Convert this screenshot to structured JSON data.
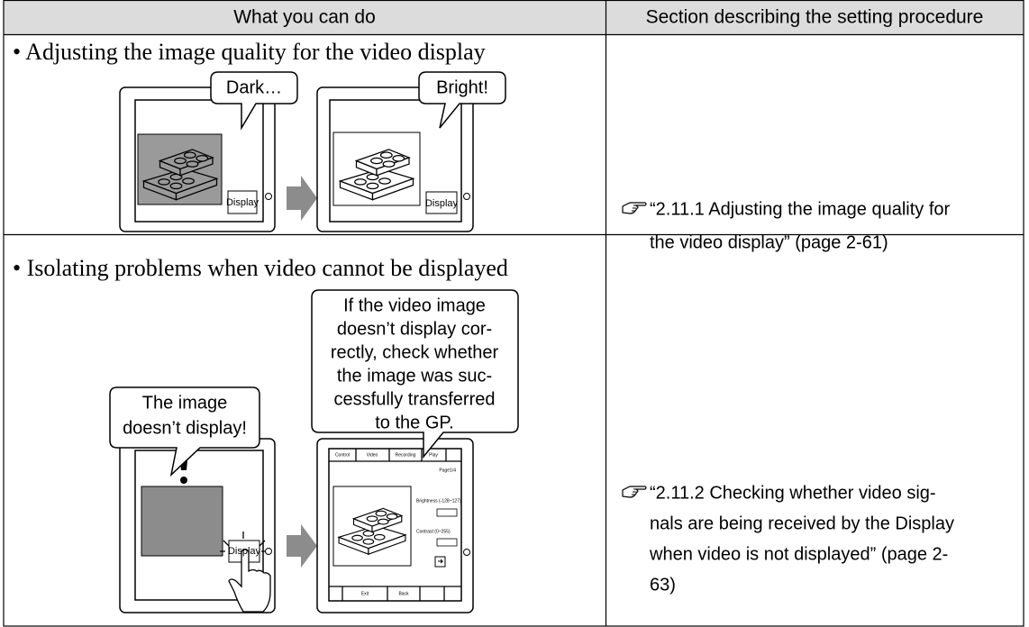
{
  "table": {
    "header": [
      "What you can do",
      "Section describing the setting procedure"
    ],
    "rows": [
      {
        "task": "• Adjusting the image quality for the video display",
        "illustration": {
          "before_callout": "Dark…",
          "after_callout": "Bright!",
          "button": "Display"
        },
        "reference": [
          "“2.11.1 Adjusting the image quality for",
          "the video display” (page 2-61)"
        ]
      },
      {
        "task": "• Isolating problems when video cannot be displayed",
        "illustration": {
          "problem_callout": [
            "The image",
            "doesn’t display!"
          ],
          "advice_callout": [
            "If the video image",
            "doesn’t display cor-",
            "rectly, check whether",
            "the image was suc-",
            "cessfully transferred",
            "to the GP."
          ],
          "button": "Display",
          "screen": {
            "tabs": [
              "Control",
              "Video",
              "Recording",
              "Play"
            ],
            "page": "Page1/4",
            "brightness": "Brightness (-128~127)",
            "contrast": "Contrast (0~255)",
            "footer": [
              "Exit",
              "Back"
            ]
          }
        },
        "reference": [
          "“2.11.2 Checking whether video sig-",
          "nals are being received by the Display",
          "when video is not displayed” (page 2-",
          "63)"
        ]
      }
    ]
  }
}
